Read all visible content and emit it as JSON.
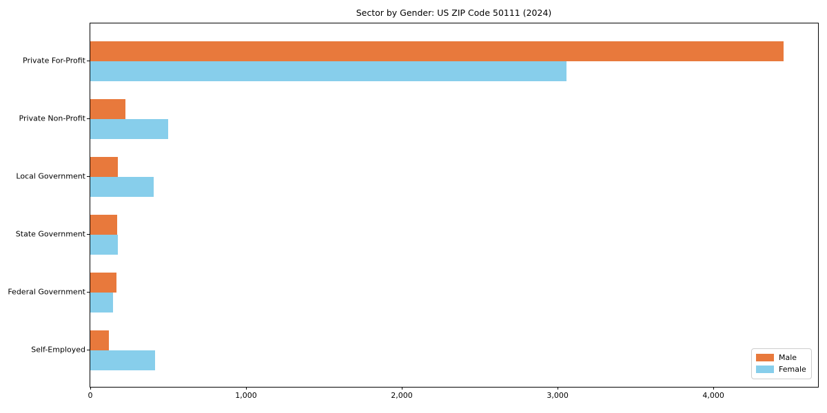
{
  "title": "Sector by Gender: US ZIP Code 50111 (2024)",
  "colors": {
    "male": "#e8793c",
    "female": "#87ceeb",
    "spine": "#000000",
    "legend_border": "#cccccc",
    "background": "#ffffff"
  },
  "legend": {
    "position": "lower right",
    "male_label": "Male",
    "female_label": "Female"
  },
  "chart_data": {
    "type": "bar",
    "orientation": "horizontal",
    "title": "Sector by Gender: US ZIP Code 50111 (2024)",
    "categories": [
      "Private For-Profit",
      "Private Non-Profit",
      "Local Government",
      "State Government",
      "Federal Government",
      "Self-Employed"
    ],
    "series": [
      {
        "name": "Male",
        "color": "#e8793c",
        "values": [
          4450,
          226,
          177,
          171,
          170,
          118
        ]
      },
      {
        "name": "Female",
        "color": "#87ceeb",
        "values": [
          3058,
          502,
          407,
          175,
          146,
          417
        ]
      }
    ],
    "xlabel": "",
    "ylabel": "",
    "xlim": [
      0,
      4672
    ],
    "xticks": [
      0,
      1000,
      2000,
      3000,
      4000
    ],
    "xtick_labels": [
      "0",
      "1,000",
      "2,000",
      "3,000",
      "4,000"
    ],
    "grid": false,
    "legend_position": "lower right",
    "legend_entries": [
      "Male",
      "Female"
    ]
  }
}
